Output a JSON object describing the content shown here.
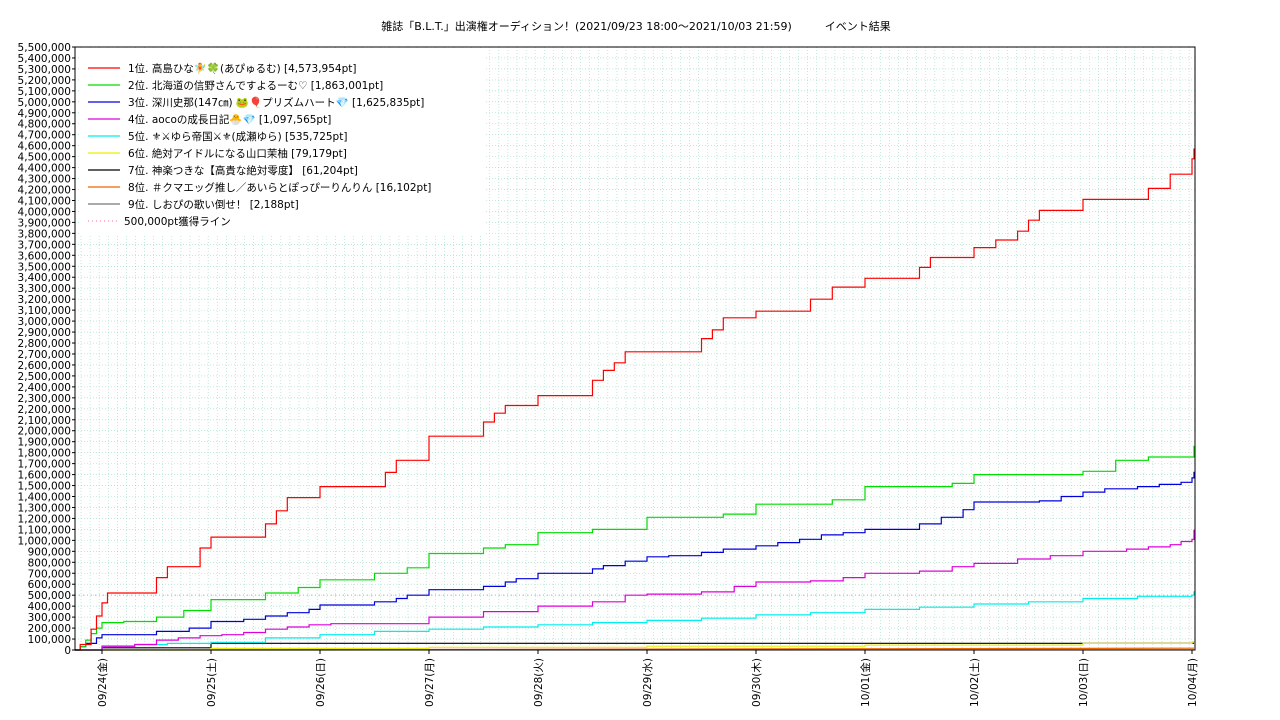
{
  "chart_data": {
    "type": "line",
    "title": "雑誌「B.L.T.」出演権オーディション！(2021/09/23 18:00〜2021/10/03 21:59)　　　イベント結果",
    "xlabel": "",
    "ylabel": "",
    "ylim": [
      0,
      5500000
    ],
    "xlim": [
      0,
      10.25
    ],
    "grid": true,
    "legend_position": "top-left",
    "x_tick_labels": [
      "09/24(金)",
      "09/25(土)",
      "09/26(日)",
      "09/27(月)",
      "09/28(火)",
      "09/29(水)",
      "09/30(木)",
      "10/01(金)",
      "10/02(土)",
      "10/03(日)",
      "10/04(月)"
    ],
    "y_tick_labels": [
      "0",
      "100,000",
      "200,000",
      "300,000",
      "400,000",
      "500,000",
      "600,000",
      "700,000",
      "800,000",
      "900,000",
      "1,000,000",
      "1,100,000",
      "1,200,000",
      "1,300,000",
      "1,400,000",
      "1,500,000",
      "1,600,000",
      "1,700,000",
      "1,800,000",
      "1,900,000",
      "2,000,000",
      "2,100,000",
      "2,200,000",
      "2,300,000",
      "2,400,000",
      "2,500,000",
      "2,600,000",
      "2,700,000",
      "2,800,000",
      "2,900,000",
      "3,000,000",
      "3,100,000",
      "3,200,000",
      "3,300,000",
      "3,400,000",
      "3,500,000",
      "3,600,000",
      "3,700,000",
      "3,800,000",
      "3,900,000",
      "4,000,000",
      "4,100,000",
      "4,200,000",
      "4,300,000",
      "4,400,000",
      "4,500,000",
      "4,600,000",
      "4,700,000",
      "4,800,000",
      "4,900,000",
      "5,000,000",
      "5,100,000",
      "5,200,000",
      "5,300,000",
      "5,400,000",
      "5,500,000"
    ],
    "series": [
      {
        "name": "1位. 高島ひな🧚🍀(あぴゅるむ) [4,573,954pt]",
        "color": "#ff0000",
        "x": [
          -0.25,
          -0.2,
          -0.1,
          -0.05,
          0.0,
          0.05,
          0.3,
          0.5,
          0.6,
          0.7,
          0.9,
          1.0,
          1.1,
          1.3,
          1.5,
          1.6,
          1.7,
          1.9,
          2.0,
          2.2,
          2.3,
          2.4,
          2.6,
          2.7,
          3.0,
          3.2,
          3.5,
          3.6,
          3.7,
          4.0,
          4.3,
          4.5,
          4.6,
          4.7,
          4.8,
          5.0,
          5.5,
          5.6,
          5.7,
          5.8,
          6.0,
          6.3,
          6.5,
          6.7,
          7.0,
          7.3,
          7.5,
          7.6,
          7.8,
          8.0,
          8.2,
          8.3,
          8.4,
          8.5,
          8.6,
          9.0,
          9.2,
          9.4,
          9.5,
          9.6,
          9.8,
          10.0,
          10.1,
          10.15
        ],
        "y": [
          0,
          50000,
          190000,
          310000,
          430000,
          520000,
          520000,
          660000,
          760000,
          760000,
          930000,
          1030000,
          1030000,
          1030000,
          1150000,
          1270000,
          1390000,
          1390000,
          1490000,
          1490000,
          1490000,
          1490000,
          1620000,
          1730000,
          1950000,
          1950000,
          2080000,
          2160000,
          2230000,
          2320000,
          2320000,
          2460000,
          2550000,
          2620000,
          2720000,
          2720000,
          2840000,
          2920000,
          3030000,
          3030000,
          3090000,
          3090000,
          3200000,
          3310000,
          3390000,
          3390000,
          3490000,
          3580000,
          3580000,
          3670000,
          3740000,
          3740000,
          3820000,
          3920000,
          4010000,
          4110000,
          4110000,
          4110000,
          4110000,
          4210000,
          4340000,
          4480000,
          4570000,
          4573954
        ]
      },
      {
        "name": "2位. 北海道の信野さんですよるーむ♡ [1,863,001pt]",
        "color": "#00dd00",
        "x": [
          -0.25,
          -0.2,
          -0.15,
          -0.1,
          -0.05,
          0.0,
          0.2,
          0.5,
          0.75,
          1.0,
          1.3,
          1.5,
          1.8,
          2.0,
          2.3,
          2.5,
          2.8,
          3.0,
          3.3,
          3.5,
          3.7,
          4.0,
          4.3,
          4.5,
          5.0,
          5.3,
          5.7,
          6.0,
          6.3,
          6.5,
          6.7,
          7.0,
          7.3,
          7.5,
          7.8,
          8.0,
          8.3,
          8.6,
          9.0,
          9.3,
          9.6,
          10.0,
          10.1,
          10.15
        ],
        "y": [
          0,
          30000,
          90000,
          150000,
          200000,
          250000,
          260000,
          300000,
          360000,
          460000,
          460000,
          520000,
          570000,
          640000,
          640000,
          700000,
          750000,
          880000,
          880000,
          930000,
          960000,
          1070000,
          1070000,
          1100000,
          1210000,
          1210000,
          1240000,
          1330000,
          1330000,
          1330000,
          1370000,
          1490000,
          1490000,
          1490000,
          1520000,
          1600000,
          1600000,
          1600000,
          1630000,
          1730000,
          1760000,
          1760000,
          1860000,
          1863001
        ]
      },
      {
        "name": "3位. 深川史那(147㎝) 🐸🎈プリズムハート💎 [1,625,835pt]",
        "color": "#0000dd",
        "x": [
          -0.25,
          -0.2,
          -0.15,
          -0.05,
          0.0,
          0.3,
          0.5,
          0.8,
          1.0,
          1.3,
          1.5,
          1.7,
          1.9,
          2.0,
          2.3,
          2.5,
          2.7,
          2.8,
          3.0,
          3.3,
          3.5,
          3.7,
          3.8,
          4.0,
          4.3,
          4.5,
          4.6,
          4.8,
          5.0,
          5.2,
          5.5,
          5.7,
          6.0,
          6.2,
          6.4,
          6.6,
          6.8,
          7.0,
          7.2,
          7.5,
          7.7,
          7.9,
          8.0,
          8.3,
          8.6,
          8.8,
          9.0,
          9.2,
          9.5,
          9.7,
          9.9,
          10.0,
          10.15
        ],
        "y": [
          0,
          30000,
          60000,
          110000,
          140000,
          140000,
          170000,
          200000,
          260000,
          280000,
          310000,
          340000,
          370000,
          410000,
          410000,
          440000,
          470000,
          500000,
          550000,
          550000,
          580000,
          620000,
          650000,
          700000,
          700000,
          740000,
          770000,
          810000,
          850000,
          860000,
          890000,
          920000,
          950000,
          980000,
          1010000,
          1050000,
          1070000,
          1100000,
          1100000,
          1150000,
          1210000,
          1280000,
          1350000,
          1350000,
          1360000,
          1400000,
          1440000,
          1470000,
          1490000,
          1510000,
          1530000,
          1570000,
          1625835
        ]
      },
      {
        "name": "4位. aocoの成長日記🐣💎 [1,097,565pt]",
        "color": "#dd00dd",
        "x": [
          -0.25,
          0.0,
          0.3,
          0.5,
          0.7,
          0.9,
          1.1,
          1.3,
          1.5,
          1.7,
          1.9,
          2.1,
          2.5,
          3.0,
          3.5,
          4.0,
          4.5,
          4.8,
          5.0,
          5.5,
          5.8,
          6.0,
          6.5,
          6.8,
          7.0,
          7.5,
          7.8,
          8.0,
          8.4,
          8.7,
          9.0,
          9.4,
          9.6,
          9.8,
          9.9,
          10.0,
          10.15
        ],
        "y": [
          0,
          30000,
          50000,
          90000,
          110000,
          130000,
          140000,
          160000,
          190000,
          210000,
          230000,
          240000,
          240000,
          300000,
          350000,
          400000,
          440000,
          500000,
          510000,
          530000,
          580000,
          620000,
          630000,
          660000,
          700000,
          720000,
          760000,
          790000,
          830000,
          860000,
          900000,
          920000,
          940000,
          960000,
          990000,
          1010000,
          1097565
        ]
      },
      {
        "name": "5位. ⚜⚔ゆら帝国⚔⚜(成瀬ゆら) [535,725pt]",
        "color": "#00eeee",
        "x": [
          -0.25,
          0.0,
          0.3,
          0.6,
          1.0,
          1.5,
          2.0,
          2.5,
          3.0,
          3.5,
          4.0,
          4.5,
          5.0,
          5.5,
          6.0,
          6.5,
          7.0,
          7.5,
          8.0,
          8.5,
          9.0,
          9.5,
          10.0,
          10.15
        ],
        "y": [
          0,
          40000,
          50000,
          60000,
          70000,
          110000,
          140000,
          170000,
          190000,
          210000,
          230000,
          250000,
          270000,
          290000,
          320000,
          340000,
          370000,
          390000,
          420000,
          440000,
          470000,
          490000,
          500000,
          535725
        ]
      },
      {
        "name": "6位. 絶対アイドルになる山口茉柚 [79,179pt]",
        "color": "#eeee00",
        "x": [
          -0.25,
          1.0,
          3.0,
          5.0,
          7.0,
          9.0,
          10.0,
          10.15
        ],
        "y": [
          0,
          15000,
          25000,
          35000,
          45000,
          60000,
          75000,
          79179
        ]
      },
      {
        "name": "7位. 神楽つきな【高貴な絶対零度】 [61,204pt]",
        "color": "#000000",
        "x": [
          -0.25,
          0.0,
          0.8,
          1.0,
          10.15
        ],
        "y": [
          0,
          20000,
          20000,
          61204,
          61204
        ]
      },
      {
        "name": "8位. ＃クマエッグ推し／あいらとぽっぴーりんりん [16,102pt]",
        "color": "#ee6600",
        "x": [
          -0.25,
          5.0,
          10.15
        ],
        "y": [
          0,
          8000,
          16102
        ]
      },
      {
        "name": "9位. しおぴの歌い倒せ！ [2,188pt]",
        "color": "#777777",
        "x": [
          -0.25,
          10.15
        ],
        "y": [
          0,
          2188
        ]
      }
    ],
    "reference_lines": [
      {
        "name": "500,000pt獲得ライン",
        "y": 500000,
        "color": "#ff88aa",
        "style": "dotted"
      }
    ]
  }
}
